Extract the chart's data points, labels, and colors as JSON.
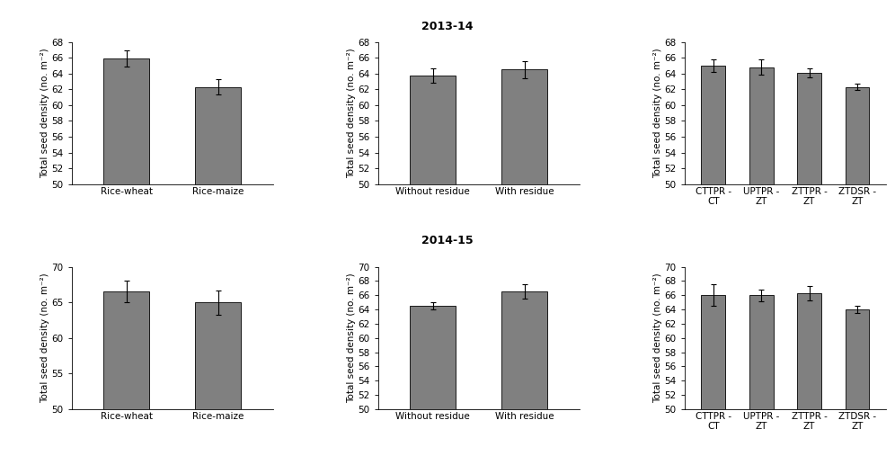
{
  "title_row1": "2013-14",
  "title_row2": "2014-15",
  "bar_color": "#808080",
  "bar_edgecolor": "#1a1a1a",
  "bar_linewidth": 0.7,
  "ylabel": "Total seed density (no. m⁻²)",
  "row1": {
    "panel1": {
      "categories": [
        "Rice-wheat",
        "Rice-maize"
      ],
      "values": [
        65.9,
        62.3
      ],
      "errors": [
        1.0,
        1.0
      ],
      "ylim": [
        50,
        68
      ],
      "yticks": [
        50,
        52,
        54,
        56,
        58,
        60,
        62,
        64,
        66,
        68
      ],
      "bar_width": 0.5
    },
    "panel2": {
      "categories": [
        "Without residue",
        "With residue"
      ],
      "values": [
        63.7,
        64.5
      ],
      "errors": [
        0.9,
        1.1
      ],
      "ylim": [
        50,
        68
      ],
      "yticks": [
        50,
        52,
        54,
        56,
        58,
        60,
        62,
        64,
        66,
        68
      ],
      "bar_width": 0.5
    },
    "panel3": {
      "categories": [
        "CTTPR -\nCT",
        "UPTPR -\nZT",
        "ZTTPR -\nZT",
        "ZTDSR -\nZT"
      ],
      "values": [
        65.0,
        64.8,
        64.1,
        62.3
      ],
      "errors": [
        0.8,
        1.0,
        0.6,
        0.4
      ],
      "ylim": [
        50,
        68
      ],
      "yticks": [
        50,
        52,
        54,
        56,
        58,
        60,
        62,
        64,
        66,
        68
      ],
      "bar_width": 0.5
    }
  },
  "row2": {
    "panel1": {
      "categories": [
        "Rice-wheat",
        "Rice-maize"
      ],
      "values": [
        66.5,
        65.0
      ],
      "errors": [
        1.5,
        1.7
      ],
      "ylim": [
        50,
        70
      ],
      "yticks": [
        50,
        55,
        60,
        65,
        70
      ],
      "bar_width": 0.5
    },
    "panel2": {
      "categories": [
        "Without residue",
        "With residue"
      ],
      "values": [
        64.5,
        66.5
      ],
      "errors": [
        0.5,
        1.0
      ],
      "ylim": [
        50,
        70
      ],
      "yticks": [
        50,
        52,
        54,
        56,
        58,
        60,
        62,
        64,
        66,
        68,
        70
      ],
      "bar_width": 0.5
    },
    "panel3": {
      "categories": [
        "CTTPR -\nCT",
        "UPTPR -\nZT",
        "ZTTPR -\nZT",
        "ZTDSR -\nZT"
      ],
      "values": [
        66.0,
        66.0,
        66.3,
        64.0
      ],
      "errors": [
        1.5,
        0.8,
        1.0,
        0.5
      ],
      "ylim": [
        50,
        70
      ],
      "yticks": [
        50,
        52,
        54,
        56,
        58,
        60,
        62,
        64,
        66,
        68,
        70
      ],
      "bar_width": 0.5
    }
  },
  "font_family": "DejaVu Sans",
  "title_fontsize": 9,
  "label_fontsize": 7.5,
  "tick_fontsize": 7.5
}
